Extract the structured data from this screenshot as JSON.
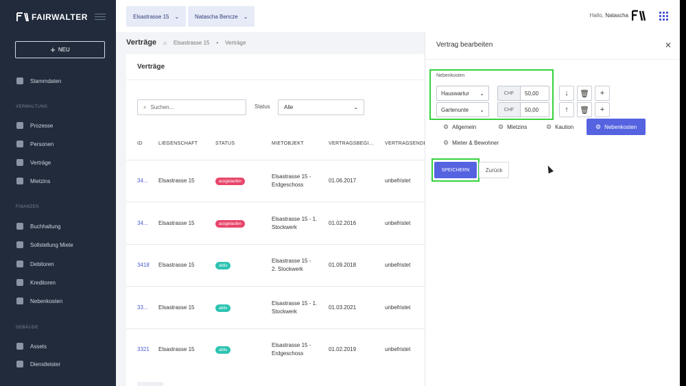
{
  "brand": {
    "name": "FAIRWALTER"
  },
  "sidebar": {
    "new_button": "NEU",
    "top_item": "Stammdaten",
    "sections": [
      {
        "title": "VERWALTUNG",
        "items": [
          "Prozesse",
          "Personen",
          "Verträge",
          "Mietzins"
        ]
      },
      {
        "title": "FINANZEN",
        "items": [
          "Buchhaltung",
          "Sollstellung Miete",
          "Debitoren",
          "Kreditoren",
          "Nebenkosten"
        ]
      },
      {
        "title": "GEBÄUDE",
        "items": [
          "Assets",
          "Dienstleister"
        ]
      }
    ]
  },
  "topbar": {
    "property_chip": "Elsastrasse 15",
    "user_chip": "Natascha Bencze",
    "greeting": "Hallo,",
    "user_name": "Natascha"
  },
  "page": {
    "title": "Verträge",
    "breadcrumb": [
      "Elsastrasse 15",
      "Verträge"
    ]
  },
  "list": {
    "card_title": "Verträge",
    "search_placeholder": "Suchen...",
    "status_label": "Status",
    "status_value": "Alle",
    "columns": [
      "ID",
      "LIEGENSCHAFT",
      "STATUS",
      "MIETOBJEKT",
      "VERTRAGSBEGI...",
      "VERTRAGSENDE"
    ],
    "rows": [
      {
        "id": "34...",
        "property": "Elsastrasse 15",
        "status": "ausgelaufen",
        "status_color": "#e8466b",
        "object_line1": "Elsastrasse 15 -",
        "object_line2": "Erdgeschoss",
        "start": "01.06.2017",
        "end": "unbefristet"
      },
      {
        "id": "34...",
        "property": "Elsastrasse 15",
        "status": "ausgelaufen",
        "status_color": "#e8466b",
        "object_line1": "Elsastrasse 15 - 1.",
        "object_line2": "Stockwerk",
        "start": "01.02.2016",
        "end": "unbefristet"
      },
      {
        "id": "3418",
        "property": "Elsastrasse 15",
        "status": "aktiv",
        "status_color": "#2dc3b2",
        "object_line1": "Elsastrasse 15 -",
        "object_line2": "2. Stockwerk",
        "start": "01.09.2018",
        "end": "unbefristet"
      },
      {
        "id": "33...",
        "property": "Elsastrasse 15",
        "status": "aktiv",
        "status_color": "#2dc3b2",
        "object_line1": "Elsastrasse 15 - 1.",
        "object_line2": "Stockwerk",
        "start": "01.03.2021",
        "end": "unbefristet"
      },
      {
        "id": "3321",
        "property": "Elsastrasse 15",
        "status": "aktiv",
        "status_color": "#2dc3b2",
        "object_line1": "Elsastrasse 15 -",
        "object_line2": "Erdgeschoss",
        "start": "01.02.2019",
        "end": "unbefristet"
      }
    ]
  },
  "panel": {
    "title": "Vertrag bearbeiten",
    "section_label": "Nebenkosten",
    "cost_rows": [
      {
        "type": "Hauswartur",
        "currency": "CHF",
        "amount": "50,00"
      },
      {
        "type": "Gartenunte",
        "currency": "CHF",
        "amount": "50,00"
      }
    ],
    "tabs": [
      "Allgemein",
      "Mietzins",
      "Kaution",
      "Nebenkosten",
      "Mieter & Bewohner"
    ],
    "active_tab": "Nebenkosten",
    "save_label": "SPEICHERN",
    "back_label": "Zurück"
  },
  "colors": {
    "sidebar_bg": "#212b3c",
    "accent": "#5563e0",
    "highlight": "#34d13a",
    "expired": "#e8466b",
    "active": "#2dc3b2"
  }
}
